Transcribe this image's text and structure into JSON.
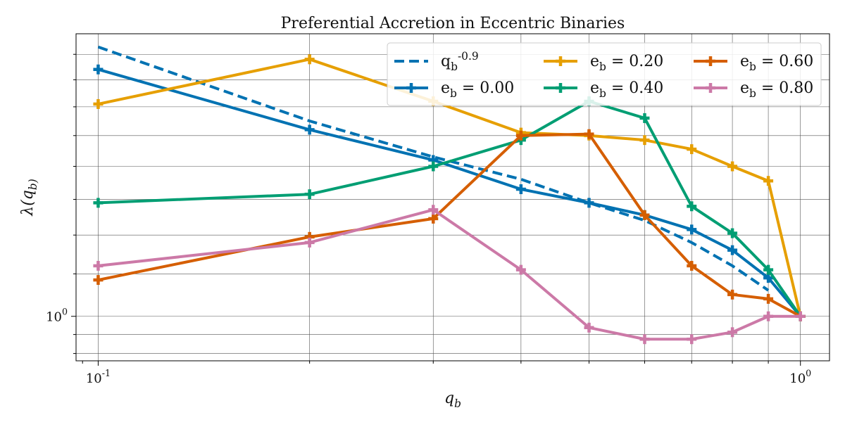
{
  "chart_data": {
    "type": "line",
    "title": "Preferential Accretion in Eccentric Binaries",
    "xlabel": "q_b",
    "ylabel": "λ(q_b)",
    "xscale": "log",
    "yscale": "log",
    "xlim": [
      0.093,
      1.1
    ],
    "ylim": [
      0.905,
      1.885
    ],
    "grid": true,
    "legend_position": "top-right",
    "legend_columns": 3,
    "x_major_ticks": [
      {
        "value": 0.1,
        "label": "10^-1"
      },
      {
        "value": 1.0,
        "label": "10^0"
      }
    ],
    "y_major_ticks": [
      {
        "value": 1.0,
        "label": "10^0"
      }
    ],
    "reference_line": {
      "name": "q_b^-0.9",
      "exponent": -0.9,
      "x": [
        0.1,
        0.2,
        0.3,
        0.4,
        0.5,
        0.6,
        0.7,
        0.8,
        0.9
      ],
      "y": [
        1.83,
        1.55,
        1.43,
        1.36,
        1.29,
        1.24,
        1.18,
        1.12,
        1.06
      ],
      "color": "#0072b2",
      "style": "dashed"
    },
    "series": [
      {
        "name": "e_b = 0.00",
        "color": "#0072b2",
        "x": [
          0.1,
          0.2,
          0.3,
          0.4,
          0.5,
          0.6,
          0.7,
          0.8,
          0.9,
          1.0
        ],
        "y": [
          1.74,
          1.52,
          1.42,
          1.33,
          1.29,
          1.255,
          1.215,
          1.16,
          1.09,
          1.0
        ]
      },
      {
        "name": "e_b = 0.20",
        "color": "#e69f00",
        "x": [
          0.1,
          0.2,
          0.3,
          0.4,
          0.5,
          0.6,
          0.7,
          0.8,
          0.9,
          1.0
        ],
        "y": [
          1.61,
          1.78,
          1.62,
          1.51,
          1.5,
          1.485,
          1.455,
          1.4,
          1.355,
          1.0
        ]
      },
      {
        "name": "e_b = 0.40",
        "color": "#009e73",
        "x": [
          0.1,
          0.2,
          0.3,
          0.4,
          0.5,
          0.6,
          0.7,
          0.8,
          0.9,
          1.0
        ],
        "y": [
          1.29,
          1.315,
          1.4,
          1.485,
          1.62,
          1.56,
          1.28,
          1.205,
          1.11,
          1.0
        ]
      },
      {
        "name": "e_b = 0.60",
        "color": "#d55e00",
        "x": [
          0.1,
          0.2,
          0.3,
          0.4,
          0.5,
          0.6,
          0.7,
          0.8,
          0.9,
          1.0
        ],
        "y": [
          1.085,
          1.195,
          1.245,
          1.5,
          1.505,
          1.255,
          1.12,
          1.05,
          1.04,
          1.0
        ]
      },
      {
        "name": "e_b = 0.80",
        "color": "#cc79a7",
        "x": [
          0.1,
          0.2,
          0.3,
          0.4,
          0.5,
          0.6,
          0.7,
          0.8,
          0.9,
          1.0
        ],
        "y": [
          1.12,
          1.18,
          1.27,
          1.11,
          0.975,
          0.95,
          0.95,
          0.965,
          1.0,
          1.0
        ]
      }
    ]
  }
}
